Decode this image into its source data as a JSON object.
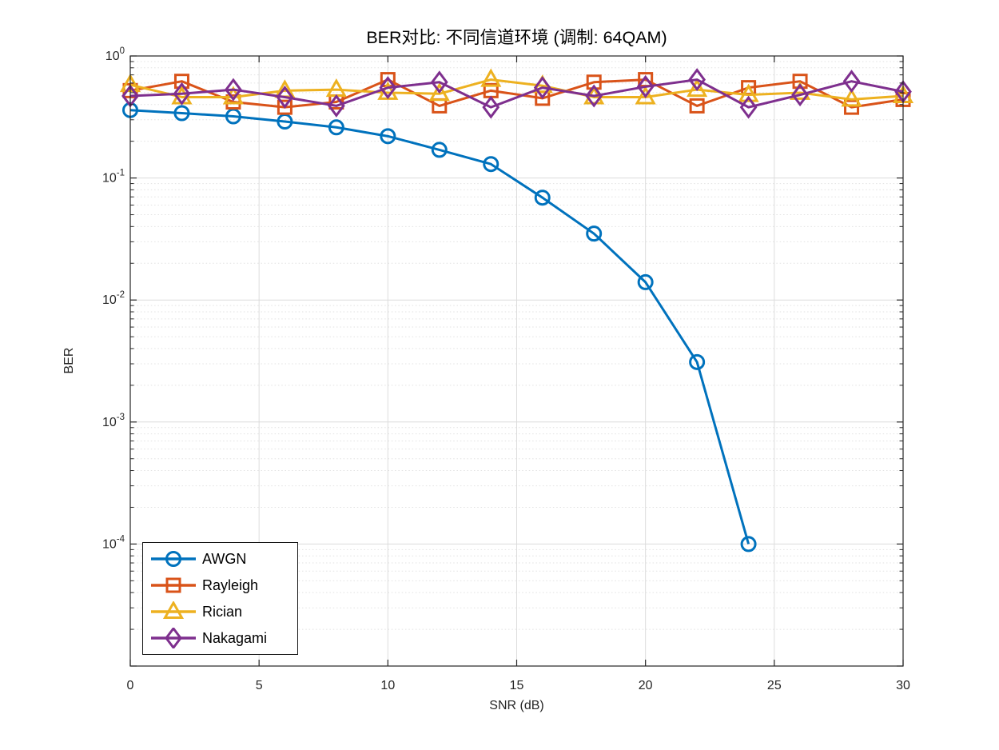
{
  "chart_data": {
    "type": "line",
    "title": "BER对比: 不同信道环境 (调制: 64QAM)",
    "xlabel": "SNR (dB)",
    "ylabel": "BER",
    "yscale": "log",
    "xlim": [
      0,
      30
    ],
    "ylim": [
      1e-05,
      1
    ],
    "xticks": [
      0,
      5,
      10,
      15,
      20,
      25,
      30
    ],
    "ytick_exponents": [
      0,
      -1,
      -2,
      -3,
      -4
    ],
    "grid": "on",
    "y_minor_grid": "on",
    "legend_position": "southwest",
    "axis_color": "#262626",
    "major_grid_color": "#dcdcdc",
    "minor_grid_color": "#e2e2e2",
    "series": [
      {
        "name": "AWGN",
        "color": "#0072BD",
        "marker": "circle",
        "x": [
          0,
          2,
          4,
          6,
          8,
          10,
          12,
          14,
          16,
          18,
          20,
          22,
          24
        ],
        "values": [
          0.36,
          0.34,
          0.32,
          0.29,
          0.26,
          0.22,
          0.17,
          0.13,
          0.069,
          0.035,
          0.014,
          0.0031,
          0.0001
        ]
      },
      {
        "name": "Rayleigh",
        "color": "#D95319",
        "marker": "square",
        "x": [
          0,
          2,
          4,
          6,
          8,
          10,
          12,
          14,
          16,
          18,
          20,
          22,
          24,
          26,
          28,
          30
        ],
        "values": [
          0.52,
          0.62,
          0.42,
          0.38,
          0.42,
          0.64,
          0.39,
          0.52,
          0.45,
          0.61,
          0.64,
          0.39,
          0.55,
          0.62,
          0.38,
          0.44
        ]
      },
      {
        "name": "Rician",
        "color": "#EDB120",
        "marker": "triangle",
        "x": [
          0,
          2,
          4,
          6,
          8,
          10,
          12,
          14,
          16,
          18,
          20,
          22,
          24,
          26,
          28,
          30
        ],
        "values": [
          0.58,
          0.46,
          0.46,
          0.52,
          0.53,
          0.5,
          0.49,
          0.64,
          0.57,
          0.46,
          0.46,
          0.53,
          0.48,
          0.5,
          0.44,
          0.47
        ]
      },
      {
        "name": "Nakagami",
        "color": "#7E2F8E",
        "marker": "diamond",
        "x": [
          0,
          2,
          4,
          6,
          8,
          10,
          12,
          14,
          16,
          18,
          20,
          22,
          24,
          26,
          28,
          30
        ],
        "values": [
          0.47,
          0.49,
          0.53,
          0.46,
          0.39,
          0.55,
          0.61,
          0.38,
          0.55,
          0.47,
          0.56,
          0.64,
          0.38,
          0.48,
          0.62,
          0.51
        ]
      }
    ]
  }
}
